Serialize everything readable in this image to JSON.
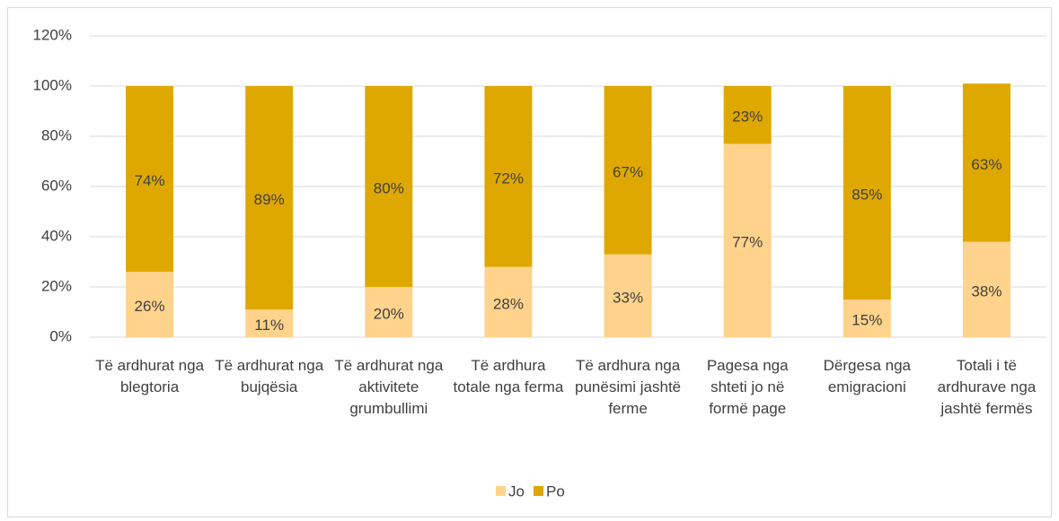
{
  "chart_data": {
    "type": "stacked_bar",
    "categories": [
      "Të ardhurat nga blegtoria",
      "Të ardhurat nga bujqësia",
      "Të ardhurat nga aktivitete grumbullimi",
      "Të ardhura totale nga ferma",
      "Të ardhura nga punësimi jashtë ferme",
      "Pagesa nga shteti jo në formë page",
      "Dërgesa nga emigracioni",
      "Totali i të ardhurave nga jashtë fermës"
    ],
    "series": [
      {
        "name": "Jo",
        "color": "#ffd38b",
        "values": [
          26,
          11,
          20,
          28,
          33,
          77,
          15,
          38
        ],
        "value_labels": [
          "26%",
          "11%",
          "20%",
          "28%",
          "33%",
          "77%",
          "15%",
          "38%"
        ]
      },
      {
        "name": "Po",
        "color": "#dfa800",
        "values": [
          74,
          89,
          80,
          72,
          67,
          23,
          85,
          63
        ],
        "value_labels": [
          "74%",
          "89%",
          "80%",
          "72%",
          "67%",
          "23%",
          "85%",
          "63%"
        ]
      }
    ],
    "ylim": [
      0,
      120
    ],
    "yticks": [
      {
        "value": 0,
        "label": "0%"
      },
      {
        "value": 20,
        "label": "20%"
      },
      {
        "value": 40,
        "label": "40%"
      },
      {
        "value": 60,
        "label": "60%"
      },
      {
        "value": 80,
        "label": "80%"
      },
      {
        "value": 100,
        "label": "100%"
      },
      {
        "value": 120,
        "label": "120%"
      }
    ],
    "grid": true,
    "legend": "bottom"
  }
}
